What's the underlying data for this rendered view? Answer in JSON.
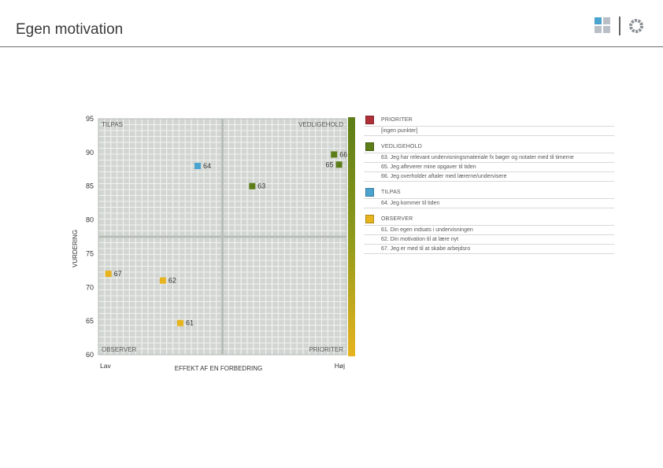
{
  "page": {
    "title": "Egen motivation"
  },
  "colors": {
    "prioriter": "#b0303a",
    "vedligehold": "#5c7d18",
    "tilpas": "#4ba3cf",
    "observer": "#e7b41e",
    "grid_major": "#ffffff",
    "plot_bg": "#d2d6d2"
  },
  "chart_data": {
    "type": "scatter",
    "title": "",
    "xlabel": "EFFEKT AF EN FORBEDRING",
    "ylabel": "VURDERING",
    "x_tick_labels": [
      "Lav",
      "Høj"
    ],
    "ylim": [
      60,
      95
    ],
    "y_ticks": [
      60,
      65,
      70,
      75,
      80,
      85,
      90,
      95
    ],
    "xlim": [
      0,
      10
    ],
    "quadrant_labels": {
      "top_left": "TILPAS",
      "top_right": "VEDLIGEHOLD",
      "bottom_left": "OBSERVER",
      "bottom_right": "PRIORITER"
    },
    "grid": true,
    "points": [
      {
        "label": "64",
        "x": 4.0,
        "y": 88.0,
        "group": "tilpas"
      },
      {
        "label": "66",
        "x": 9.5,
        "y": 89.7,
        "group": "vedligehold"
      },
      {
        "label": "65",
        "x": 9.7,
        "y": 88.2,
        "group": "vedligehold"
      },
      {
        "label": "63",
        "x": 6.2,
        "y": 85.0,
        "group": "vedligehold"
      },
      {
        "label": "67",
        "x": 0.4,
        "y": 72.0,
        "group": "observer"
      },
      {
        "label": "62",
        "x": 2.6,
        "y": 71.0,
        "group": "observer"
      },
      {
        "label": "61",
        "x": 3.3,
        "y": 64.7,
        "group": "observer"
      }
    ]
  },
  "legend": {
    "groups": [
      {
        "key": "prioriter",
        "name": "PRIORITER",
        "items": [
          "[ingen punkter]"
        ]
      },
      {
        "key": "vedligehold",
        "name": "VEDLIGEHOLD",
        "items": [
          "63. Jeg har relevant undervisningsmateriale fx bøger og notater med til timerne",
          "65. Jeg afleverer mine opgaver til tiden",
          "66. Jeg overholder aftaler med lærerne/undervisere"
        ]
      },
      {
        "key": "tilpas",
        "name": "TILPAS",
        "items": [
          "64. Jeg kommer til tiden"
        ]
      },
      {
        "key": "observer",
        "name": "OBSERVER",
        "items": [
          "61. Din egen indsats i undervisningen",
          "62. Din motivation til at lære nyt",
          "67. Jeg er med til at skabe arbejdsro"
        ]
      }
    ]
  }
}
